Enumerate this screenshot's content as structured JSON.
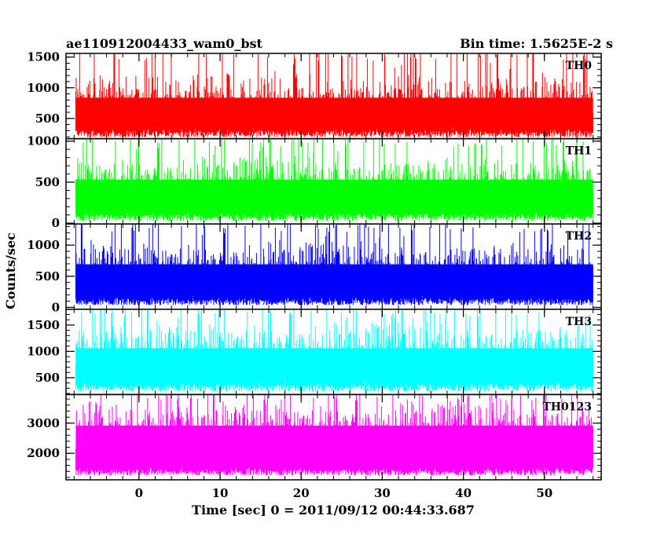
{
  "header": {
    "title": "ae110912004433_wam0_bst",
    "bin_time": "Bin time: 1.5625E-2 s"
  },
  "axes": {
    "xlabel": "Time [sec] 0 = 2011/09/12 00:44:33.687",
    "ylabel": "Counts/sec"
  },
  "chart_data": {
    "type": "line",
    "title": "ae110912004433_wam0_bst",
    "subtitle": "Bin time: 1.5625E-2 s",
    "xlabel": "Time [sec] 0 = 2011/09/12 00:44:33.687",
    "ylabel": "Counts/sec",
    "xlim": [
      -9,
      57
    ],
    "data_x_range": [
      -7.8,
      56
    ],
    "x_ticks": [
      0,
      10,
      20,
      30,
      40,
      50
    ],
    "bin_time_s": 0.015625,
    "panels": [
      {
        "name": "TH0",
        "color": "#ff0000",
        "ylim": [
          170,
          1560
        ],
        "y_ticks": [
          500,
          1000,
          1500
        ],
        "baseline": 210,
        "mean": 700,
        "spread": 230,
        "peak_max": 1600
      },
      {
        "name": "TH1",
        "color": "#00ff00",
        "ylim": [
          -10,
          1030
        ],
        "y_ticks": [
          0,
          500,
          1000
        ],
        "baseline": 40,
        "mean": 430,
        "spread": 170,
        "peak_max": 1030
      },
      {
        "name": "TH2",
        "color": "#0000ff",
        "ylim": [
          -30,
          1340
        ],
        "y_ticks": [
          0,
          500,
          1000
        ],
        "baseline": 50,
        "mean": 560,
        "spread": 220,
        "peak_max": 1340
      },
      {
        "name": "TH3",
        "color": "#00ffff",
        "ylim": [
          180,
          1800
        ],
        "y_ticks": [
          500,
          1000,
          1500
        ],
        "baseline": 260,
        "mean": 880,
        "spread": 300,
        "peak_max": 1800
      },
      {
        "name": "TH0123",
        "color": "#ff00ff",
        "ylim": [
          1120,
          3950
        ],
        "y_ticks": [
          2000,
          3000
        ],
        "baseline": 1300,
        "mean": 2650,
        "spread": 450,
        "peak_max": 3950
      }
    ]
  }
}
